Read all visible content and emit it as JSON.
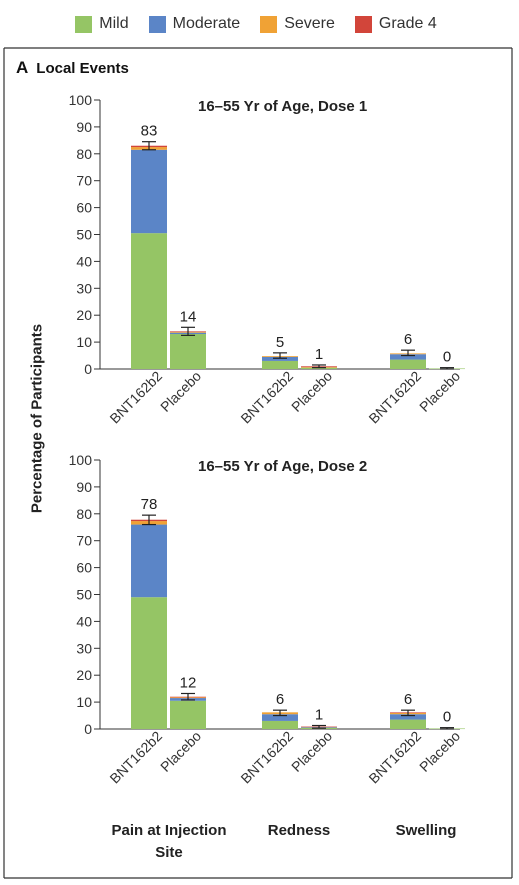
{
  "legend": [
    {
      "label": "Mild",
      "color": "#95c565"
    },
    {
      "label": "Moderate",
      "color": "#5b85c7"
    },
    {
      "label": "Severe",
      "color": "#f0a235"
    },
    {
      "label": "Grade 4",
      "color": "#d2453a"
    }
  ],
  "panel": {
    "letter": "A",
    "title": "Local Events"
  },
  "ylabel": "Percentage of Participants",
  "groups": [
    "Pain at Injection Site",
    "Redness",
    "Swelling"
  ],
  "chart_data": [
    {
      "type": "bar",
      "title": "16–55 Yr of Age, Dose 1",
      "ylabel": "Percentage of Participants",
      "ylim": [
        0,
        100
      ],
      "yticks": [
        0,
        10,
        20,
        30,
        40,
        50,
        60,
        70,
        80,
        90,
        100
      ],
      "categories": [
        "BNT162b2",
        "Placebo",
        "BNT162b2",
        "Placebo",
        "BNT162b2",
        "Placebo"
      ],
      "groups": [
        "Pain at Injection Site",
        "Redness",
        "Swelling"
      ],
      "series": [
        {
          "name": "Mild",
          "values": [
            50.5,
            13,
            3,
            0.5,
            3.5,
            0.2
          ]
        },
        {
          "name": "Moderate",
          "values": [
            31,
            0.5,
            1.5,
            0,
            2,
            0
          ]
        },
        {
          "name": "Severe",
          "values": [
            1,
            0.3,
            0.3,
            0.2,
            0.3,
            0
          ]
        },
        {
          "name": "Grade 4",
          "values": [
            0.5,
            0.2,
            0,
            0.3,
            0,
            0
          ]
        }
      ],
      "totals": [
        83,
        14,
        5,
        1,
        6,
        0
      ],
      "error_bars": [
        [
          81.5,
          84.5
        ],
        [
          12.5,
          15.5
        ],
        [
          4,
          6
        ],
        [
          0.5,
          1.5
        ],
        [
          5,
          7
        ],
        [
          0,
          0.5
        ]
      ]
    },
    {
      "type": "bar",
      "title": "16–55 Yr of Age, Dose 2",
      "ylabel": "Percentage of Participants",
      "ylim": [
        0,
        100
      ],
      "yticks": [
        0,
        10,
        20,
        30,
        40,
        50,
        60,
        70,
        80,
        90,
        100
      ],
      "categories": [
        "BNT162b2",
        "Placebo",
        "BNT162b2",
        "Placebo",
        "BNT162b2",
        "Placebo"
      ],
      "groups": [
        "Pain at Injection Site",
        "Redness",
        "Swelling"
      ],
      "series": [
        {
          "name": "Mild",
          "values": [
            49,
            10.5,
            3,
            0.5,
            3.5,
            0.2
          ]
        },
        {
          "name": "Moderate",
          "values": [
            27,
            1,
            2.5,
            0.2,
            2,
            0
          ]
        },
        {
          "name": "Severe",
          "values": [
            1.3,
            0.3,
            0.7,
            0,
            0.5,
            0
          ]
        },
        {
          "name": "Grade 4",
          "values": [
            0.5,
            0.2,
            0,
            0.2,
            0.2,
            0
          ]
        }
      ],
      "totals": [
        78,
        12,
        6,
        1,
        6,
        0
      ],
      "error_bars": [
        [
          76,
          79.5
        ],
        [
          10.8,
          13.2
        ],
        [
          5,
          7
        ],
        [
          0.3,
          1.3
        ],
        [
          5,
          7
        ],
        [
          0,
          0.5
        ]
      ]
    }
  ]
}
